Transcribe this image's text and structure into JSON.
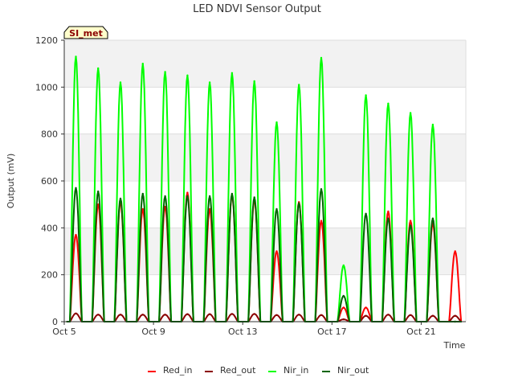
{
  "chart_data": {
    "type": "line",
    "title": "LED NDVI Sensor Output",
    "xlabel": "Time",
    "ylabel": "Output (mV)",
    "site_badge": "SI_met",
    "ylim": [
      0,
      1200
    ],
    "yticks": [
      0,
      200,
      400,
      600,
      800,
      1000,
      1200
    ],
    "xlim": [
      "2023-10-05",
      "2023-10-23"
    ],
    "xticks": [
      "Oct 5",
      "Oct 9",
      "Oct 13",
      "Oct 17",
      "Oct 21"
    ],
    "xtick_dates": [
      "2023-10-05",
      "2023-10-09",
      "2023-10-13",
      "2023-10-17",
      "2023-10-21"
    ],
    "grid": true,
    "legend_position": "bottom",
    "series": [
      {
        "name": "Red_in",
        "color": "#ff0000",
        "x": [
          "2023-10-05 12:30",
          "2023-10-06 12:30",
          "2023-10-07 12:30",
          "2023-10-08 12:30",
          "2023-10-09 12:30",
          "2023-10-10 12:30",
          "2023-10-11 12:30",
          "2023-10-12 12:30",
          "2023-10-13 12:30",
          "2023-10-14 12:30",
          "2023-10-15 12:30",
          "2023-10-16 12:30",
          "2023-10-17 12:30",
          "2023-10-18 12:30",
          "2023-10-19 12:30",
          "2023-10-20 12:30",
          "2023-10-21 12:30",
          "2023-10-22 12:30"
        ],
        "values": [
          370,
          500,
          510,
          480,
          490,
          550,
          480,
          540,
          520,
          300,
          510,
          430,
          60,
          60,
          470,
          430,
          420,
          300
        ]
      },
      {
        "name": "Red_out",
        "color": "#8b0000",
        "x": [
          "2023-10-05 12:30",
          "2023-10-06 12:30",
          "2023-10-07 12:30",
          "2023-10-08 12:30",
          "2023-10-09 12:30",
          "2023-10-10 12:30",
          "2023-10-11 12:30",
          "2023-10-12 12:30",
          "2023-10-13 12:30",
          "2023-10-14 12:30",
          "2023-10-15 12:30",
          "2023-10-16 12:30",
          "2023-10-17 12:30",
          "2023-10-18 12:30",
          "2023-10-19 12:30",
          "2023-10-20 12:30",
          "2023-10-21 12:30",
          "2023-10-22 12:30"
        ],
        "values": [
          35,
          30,
          30,
          30,
          30,
          32,
          32,
          33,
          33,
          28,
          30,
          28,
          10,
          25,
          30,
          28,
          25,
          25
        ]
      },
      {
        "name": "Nir_in",
        "color": "#00ff00",
        "x": [
          "2023-10-05 12:30",
          "2023-10-06 12:30",
          "2023-10-07 12:30",
          "2023-10-08 12:30",
          "2023-10-09 12:30",
          "2023-10-10 12:30",
          "2023-10-11 12:30",
          "2023-10-12 12:30",
          "2023-10-13 12:30",
          "2023-10-14 12:30",
          "2023-10-15 12:30",
          "2023-10-16 12:30",
          "2023-10-17 12:30",
          "2023-10-18 12:30",
          "2023-10-19 12:30",
          "2023-10-20 12:30",
          "2023-10-21 12:30",
          "2023-10-22 12:30"
        ],
        "values": [
          1130,
          1080,
          1020,
          1100,
          1065,
          1050,
          1020,
          1060,
          1025,
          850,
          1010,
          1125,
          240,
          965,
          930,
          890,
          840,
          0
        ]
      },
      {
        "name": "Nir_out",
        "color": "#006400",
        "x": [
          "2023-10-05 12:30",
          "2023-10-06 12:30",
          "2023-10-07 12:30",
          "2023-10-08 12:30",
          "2023-10-09 12:30",
          "2023-10-10 12:30",
          "2023-10-11 12:30",
          "2023-10-12 12:30",
          "2023-10-13 12:30",
          "2023-10-14 12:30",
          "2023-10-15 12:30",
          "2023-10-16 12:30",
          "2023-10-17 12:30",
          "2023-10-18 12:30",
          "2023-10-19 12:30",
          "2023-10-20 12:30",
          "2023-10-21 12:30",
          "2023-10-22 12:30"
        ],
        "values": [
          570,
          555,
          525,
          545,
          535,
          535,
          535,
          545,
          530,
          480,
          505,
          565,
          110,
          460,
          440,
          410,
          440,
          0
        ]
      }
    ]
  }
}
